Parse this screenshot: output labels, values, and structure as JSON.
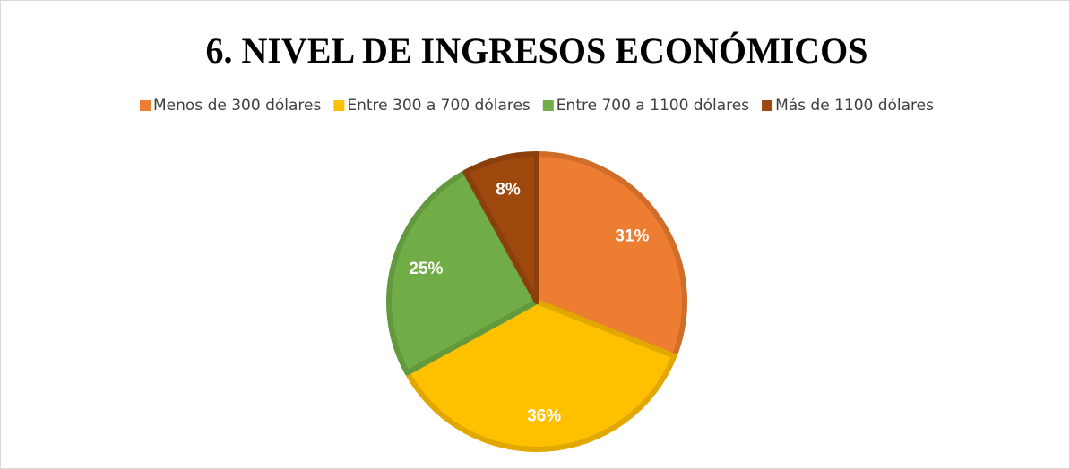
{
  "chart_data": {
    "type": "pie",
    "title": "6. NIVEL DE INGRESOS ECONÓMICOS",
    "categories": [
      "Menos de 300 dólares",
      "Entre 300 a 700 dólares",
      "Entre 700 a 1100 dólares",
      "Más de 1100 dólares"
    ],
    "values": [
      31,
      36,
      25,
      8
    ],
    "value_labels": [
      "31%",
      "36%",
      "25%",
      "8%"
    ],
    "colors": [
      "#ED7D31",
      "#FFC000",
      "#70AD47",
      "#9E480E"
    ],
    "legend": "top"
  }
}
